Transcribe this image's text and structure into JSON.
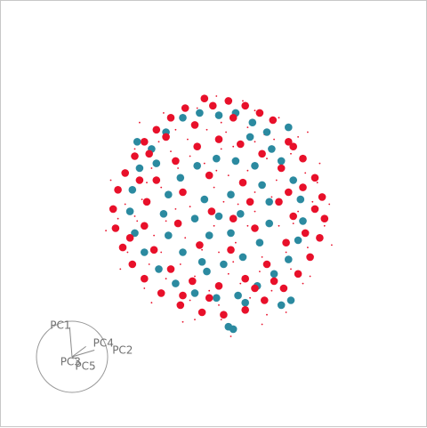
{
  "chart_data": {
    "type": "scatter",
    "title": "",
    "xlabel": "",
    "ylabel": "",
    "xlim": [
      -1,
      1
    ],
    "ylim": [
      -1,
      1
    ],
    "grid": false,
    "legend": "none",
    "series": [
      {
        "color": "#e8102a",
        "points": [
          [
            -0.12,
            0.98
          ],
          [
            -0.05,
            0.92
          ],
          [
            0.08,
            0.96
          ],
          [
            0.22,
            0.92
          ],
          [
            0.34,
            0.86
          ],
          [
            0.45,
            0.8
          ],
          [
            -0.28,
            0.9
          ],
          [
            -0.4,
            0.82
          ],
          [
            -0.52,
            0.72
          ],
          [
            -0.62,
            0.62
          ],
          [
            -0.7,
            0.5
          ],
          [
            -0.78,
            0.36
          ],
          [
            -0.84,
            0.22
          ],
          [
            -0.88,
            0.06
          ],
          [
            -0.86,
            -0.1
          ],
          [
            -0.8,
            -0.26
          ],
          [
            -0.72,
            -0.4
          ],
          [
            -0.62,
            -0.52
          ],
          [
            -0.48,
            -0.64
          ],
          [
            -0.32,
            -0.74
          ],
          [
            -0.14,
            -0.8
          ],
          [
            0.04,
            -0.82
          ],
          [
            0.22,
            -0.78
          ],
          [
            0.38,
            -0.7
          ],
          [
            0.54,
            -0.6
          ],
          [
            0.66,
            -0.48
          ],
          [
            0.76,
            -0.34
          ],
          [
            0.84,
            -0.18
          ],
          [
            0.88,
            -0.02
          ],
          [
            0.86,
            0.16
          ],
          [
            0.8,
            0.32
          ],
          [
            0.7,
            0.48
          ],
          [
            0.58,
            0.62
          ],
          [
            0.52,
            0.4
          ],
          [
            0.36,
            0.52
          ],
          [
            0.18,
            0.6
          ],
          [
            0.0,
            0.64
          ],
          [
            -0.18,
            0.58
          ],
          [
            -0.36,
            0.46
          ],
          [
            -0.52,
            0.3
          ],
          [
            -0.6,
            0.12
          ],
          [
            -0.62,
            -0.08
          ],
          [
            -0.54,
            -0.28
          ],
          [
            -0.4,
            -0.44
          ],
          [
            -0.22,
            -0.54
          ],
          [
            0.0,
            -0.58
          ],
          [
            0.22,
            -0.52
          ],
          [
            0.4,
            -0.4
          ],
          [
            0.56,
            -0.22
          ],
          [
            0.62,
            0.0
          ],
          [
            0.58,
            0.2
          ],
          [
            0.2,
            0.28
          ],
          [
            -0.08,
            0.34
          ],
          [
            -0.3,
            0.2
          ],
          [
            -0.34,
            -0.06
          ],
          [
            -0.16,
            -0.24
          ],
          [
            0.1,
            -0.28
          ],
          [
            0.3,
            -0.1
          ],
          [
            0.26,
            0.12
          ],
          [
            -0.06,
            0.04
          ],
          [
            0.12,
            -0.02
          ],
          [
            -0.44,
            0.66
          ],
          [
            -0.66,
            0.3
          ],
          [
            -0.74,
            -0.18
          ],
          [
            -0.3,
            -0.66
          ],
          [
            0.3,
            -0.6
          ],
          [
            0.72,
            -0.14
          ],
          [
            0.7,
            0.24
          ],
          [
            0.12,
            0.82
          ],
          [
            -0.2,
            0.76
          ],
          [
            0.46,
            -0.54
          ],
          [
            -0.58,
            0.52
          ],
          [
            0.62,
            0.58
          ],
          [
            0.8,
            0.06
          ],
          [
            -0.08,
            -0.68
          ],
          [
            0.5,
            0.12
          ]
        ]
      },
      {
        "color": "#2b8aa0",
        "points": [
          [
            -0.3,
            0.82
          ],
          [
            -0.16,
            0.86
          ],
          [
            0.0,
            0.84
          ],
          [
            0.14,
            0.86
          ],
          [
            0.28,
            0.78
          ],
          [
            0.4,
            0.7
          ],
          [
            -0.44,
            0.7
          ],
          [
            -0.56,
            0.56
          ],
          [
            -0.66,
            0.4
          ],
          [
            -0.72,
            0.22
          ],
          [
            -0.74,
            0.04
          ],
          [
            -0.7,
            -0.14
          ],
          [
            -0.62,
            -0.3
          ],
          [
            -0.5,
            -0.44
          ],
          [
            -0.36,
            -0.56
          ],
          [
            -0.2,
            -0.64
          ],
          [
            -0.02,
            -0.68
          ],
          [
            0.16,
            -0.66
          ],
          [
            0.32,
            -0.58
          ],
          [
            0.46,
            -0.48
          ],
          [
            0.58,
            -0.36
          ],
          [
            0.66,
            -0.2
          ],
          [
            0.7,
            -0.04
          ],
          [
            0.68,
            0.14
          ],
          [
            0.62,
            0.3
          ],
          [
            0.52,
            0.46
          ],
          [
            0.44,
            0.56
          ],
          [
            0.3,
            0.42
          ],
          [
            0.14,
            0.46
          ],
          [
            -0.02,
            0.48
          ],
          [
            -0.18,
            0.42
          ],
          [
            -0.32,
            0.32
          ],
          [
            -0.42,
            0.18
          ],
          [
            -0.46,
            0.02
          ],
          [
            -0.42,
            -0.16
          ],
          [
            -0.3,
            -0.3
          ],
          [
            -0.14,
            -0.38
          ],
          [
            0.04,
            -0.4
          ],
          [
            0.2,
            -0.34
          ],
          [
            0.34,
            -0.22
          ],
          [
            0.42,
            -0.06
          ],
          [
            0.42,
            0.12
          ],
          [
            0.36,
            0.26
          ],
          [
            0.1,
            0.18
          ],
          [
            -0.12,
            0.14
          ],
          [
            -0.2,
            -0.02
          ],
          [
            -0.08,
            -0.16
          ],
          [
            0.1,
            -0.14
          ],
          [
            0.18,
            0.02
          ],
          [
            0.0,
            0.0
          ],
          [
            0.22,
            -0.72
          ],
          [
            0.08,
            -0.92
          ],
          [
            0.12,
            -0.94
          ],
          [
            0.6,
            -0.7
          ],
          [
            0.52,
            -0.74
          ],
          [
            -0.68,
            0.62
          ],
          [
            0.58,
            0.74
          ],
          [
            -0.52,
            0.44
          ],
          [
            0.26,
            0.66
          ],
          [
            -0.1,
            -0.46
          ]
        ]
      },
      {
        "color": "#e8102a",
        "size": "small",
        "points": [
          [
            -0.1,
            0.72
          ],
          [
            0.06,
            0.7
          ],
          [
            0.3,
            0.62
          ],
          [
            -0.4,
            0.54
          ],
          [
            -0.56,
            0.4
          ],
          [
            -0.64,
            0.14
          ],
          [
            -0.68,
            -0.04
          ],
          [
            -0.58,
            -0.4
          ],
          [
            -0.44,
            -0.52
          ],
          [
            -0.24,
            -0.7
          ],
          [
            0.0,
            -0.74
          ],
          [
            0.26,
            -0.68
          ],
          [
            0.44,
            -0.62
          ],
          [
            0.6,
            -0.44
          ],
          [
            0.74,
            -0.26
          ],
          [
            0.78,
            0.12
          ],
          [
            0.72,
            0.36
          ],
          [
            0.6,
            0.52
          ],
          [
            0.46,
            0.64
          ],
          [
            0.24,
            0.74
          ],
          [
            0.02,
            0.56
          ],
          [
            -0.24,
            0.5
          ],
          [
            -0.48,
            0.24
          ],
          [
            -0.54,
            -0.16
          ],
          [
            -0.32,
            -0.4
          ],
          [
            0.08,
            -0.48
          ],
          [
            0.36,
            -0.34
          ],
          [
            0.5,
            -0.08
          ],
          [
            0.48,
            0.3
          ],
          [
            0.24,
            0.38
          ],
          [
            -0.04,
            0.24
          ],
          [
            -0.24,
            0.08
          ],
          [
            -0.14,
            -0.28
          ],
          [
            0.14,
            -0.22
          ],
          [
            0.3,
            0.04
          ],
          [
            0.04,
            0.12
          ],
          [
            -0.04,
            -0.08
          ],
          [
            0.16,
            0.1
          ],
          [
            -0.36,
            0.06
          ],
          [
            0.0,
            -0.3
          ],
          [
            -0.78,
            0.1
          ],
          [
            -0.76,
            -0.3
          ],
          [
            0.82,
            0.28
          ],
          [
            0.3,
            0.88
          ],
          [
            -0.36,
            0.72
          ],
          [
            -0.2,
            -0.86
          ],
          [
            0.4,
            -0.82
          ],
          [
            0.7,
            -0.56
          ],
          [
            -0.84,
            -0.02
          ],
          [
            0.88,
            -0.08
          ],
          [
            0.1,
            -1.0
          ],
          [
            -0.02,
            1.0
          ],
          [
            0.5,
            0.82
          ],
          [
            -0.62,
            -0.6
          ],
          [
            0.66,
            0.66
          ],
          [
            -0.7,
            0.56
          ],
          [
            0.92,
            0.1
          ],
          [
            -0.9,
            0.3
          ],
          [
            -0.46,
            0.86
          ],
          [
            0.36,
            -0.9
          ],
          [
            -0.18,
            0.9
          ],
          [
            0.2,
            0.96
          ],
          [
            -0.56,
            -0.72
          ],
          [
            0.76,
            -0.5
          ],
          [
            0.84,
            0.44
          ],
          [
            -0.82,
            -0.44
          ],
          [
            0.56,
            -0.8
          ],
          [
            -0.3,
            -0.88
          ],
          [
            -0.66,
            0.78
          ],
          [
            0.74,
            0.7
          ],
          [
            0.94,
            -0.24
          ],
          [
            -0.94,
            -0.12
          ],
          [
            0.02,
            -0.86
          ],
          [
            -0.12,
            0.44
          ],
          [
            0.4,
            0.48
          ],
          [
            -0.48,
            -0.3
          ],
          [
            0.54,
            0.4
          ],
          [
            -0.26,
            0.64
          ],
          [
            0.18,
            -0.56
          ],
          [
            0.62,
            -0.06
          ],
          [
            -0.6,
            0.28
          ],
          [
            0.3,
            0.2
          ],
          [
            -0.2,
            -0.5
          ],
          [
            0.44,
            0.16
          ],
          [
            -0.44,
            -0.04
          ],
          [
            0.08,
            0.34
          ],
          [
            0.34,
            -0.46
          ],
          [
            -0.08,
            -0.62
          ],
          [
            0.66,
            0.04
          ],
          [
            -0.7,
            0.0
          ],
          [
            0.02,
            0.78
          ],
          [
            0.12,
            -0.38
          ],
          [
            -0.34,
            0.4
          ],
          [
            0.56,
            -0.3
          ],
          [
            -0.02,
            0.38
          ],
          [
            0.24,
            -0.08
          ],
          [
            -0.28,
            -0.18
          ],
          [
            0.38,
            0.68
          ],
          [
            -0.5,
            0.62
          ],
          [
            0.12,
            0.58
          ]
        ]
      }
    ],
    "biplot": {
      "labels": [
        "PC1",
        "PC4",
        "PC2",
        "PC3",
        "PC5"
      ],
      "vectors": [
        [
          -0.08,
          0.98
        ],
        [
          0.46,
          0.34
        ],
        [
          0.74,
          0.22
        ],
        [
          0.02,
          0.02
        ],
        [
          0.16,
          -0.08
        ]
      ]
    }
  }
}
